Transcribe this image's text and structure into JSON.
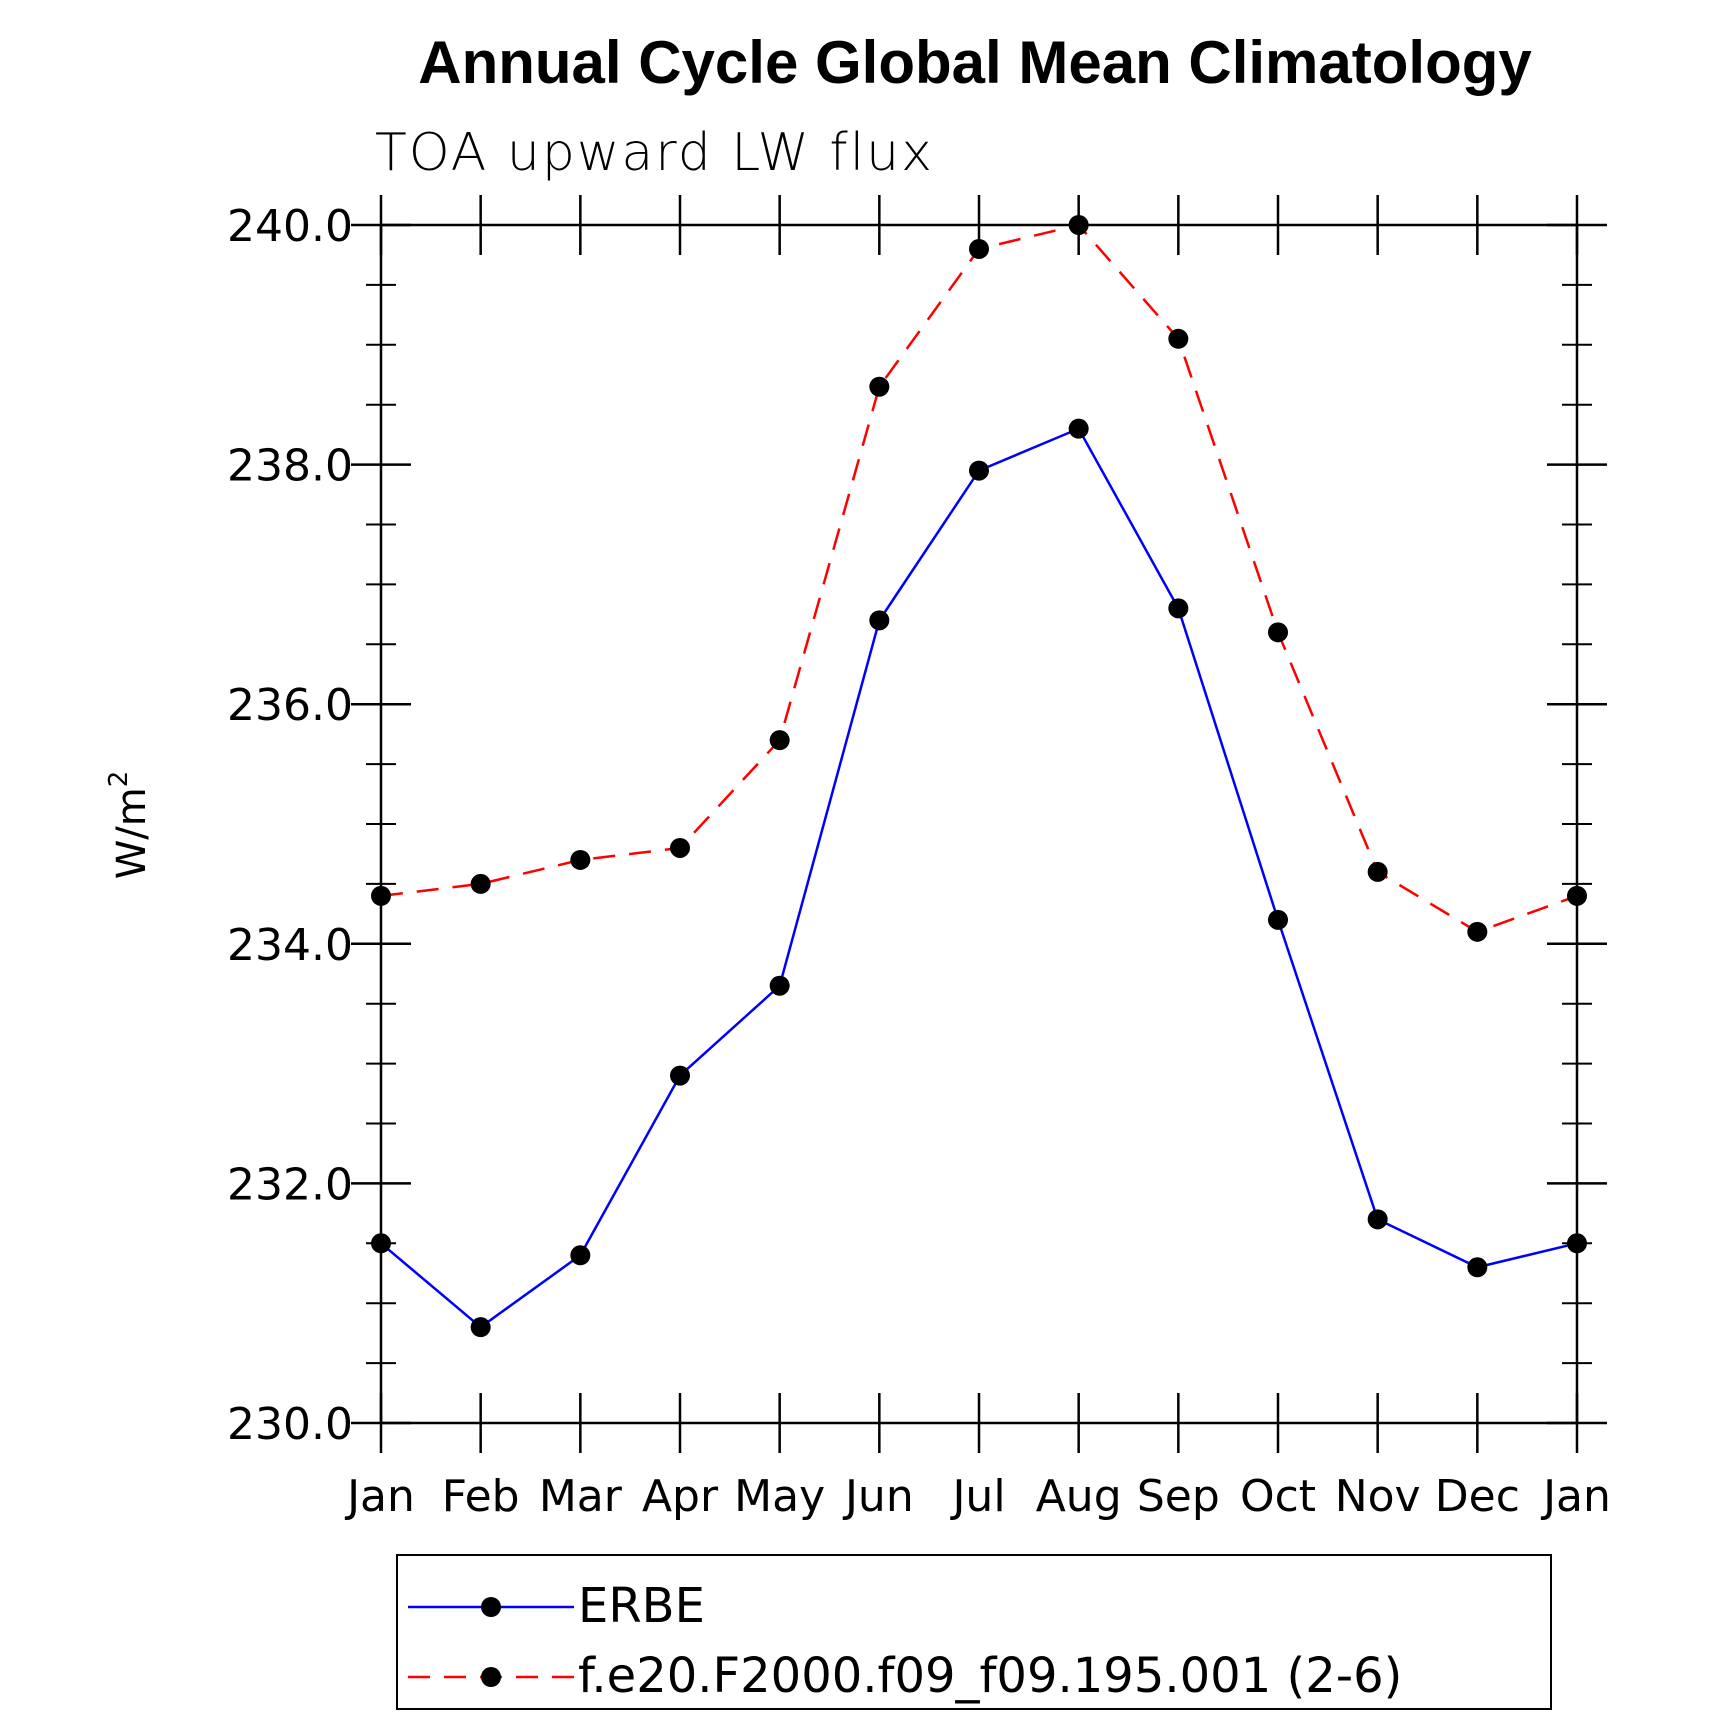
{
  "chart_data": {
    "type": "line",
    "title": "Annual Cycle Global Mean Climatology",
    "subtitle": "TOA upward LW flux",
    "ylabel": "W/m",
    "ylabel_superscript": "2",
    "xlabel": "",
    "categories": [
      "Jan",
      "Feb",
      "Mar",
      "Apr",
      "May",
      "Jun",
      "Jul",
      "Aug",
      "Sep",
      "Oct",
      "Nov",
      "Dec",
      "Jan"
    ],
    "ylim": [
      230.0,
      240.0
    ],
    "yticks": [
      "230.0",
      "232.0",
      "234.0",
      "236.0",
      "238.0",
      "240.0"
    ],
    "series": [
      {
        "name": "ERBE",
        "color": "#0000ff",
        "style": "solid",
        "marker": "filled-circle",
        "values": [
          231.5,
          230.8,
          231.4,
          232.9,
          233.65,
          236.7,
          237.95,
          238.3,
          236.8,
          234.2,
          231.7,
          231.3,
          231.5
        ]
      },
      {
        "name": "f.e20.F2000.f09_f09.195.001 (2-6)",
        "color": "#ff0000",
        "style": "dashed",
        "marker": "filled-circle",
        "values": [
          234.4,
          234.5,
          234.7,
          234.8,
          235.7,
          238.65,
          239.8,
          240.0,
          239.05,
          236.6,
          234.6,
          234.1,
          234.4
        ]
      }
    ]
  }
}
